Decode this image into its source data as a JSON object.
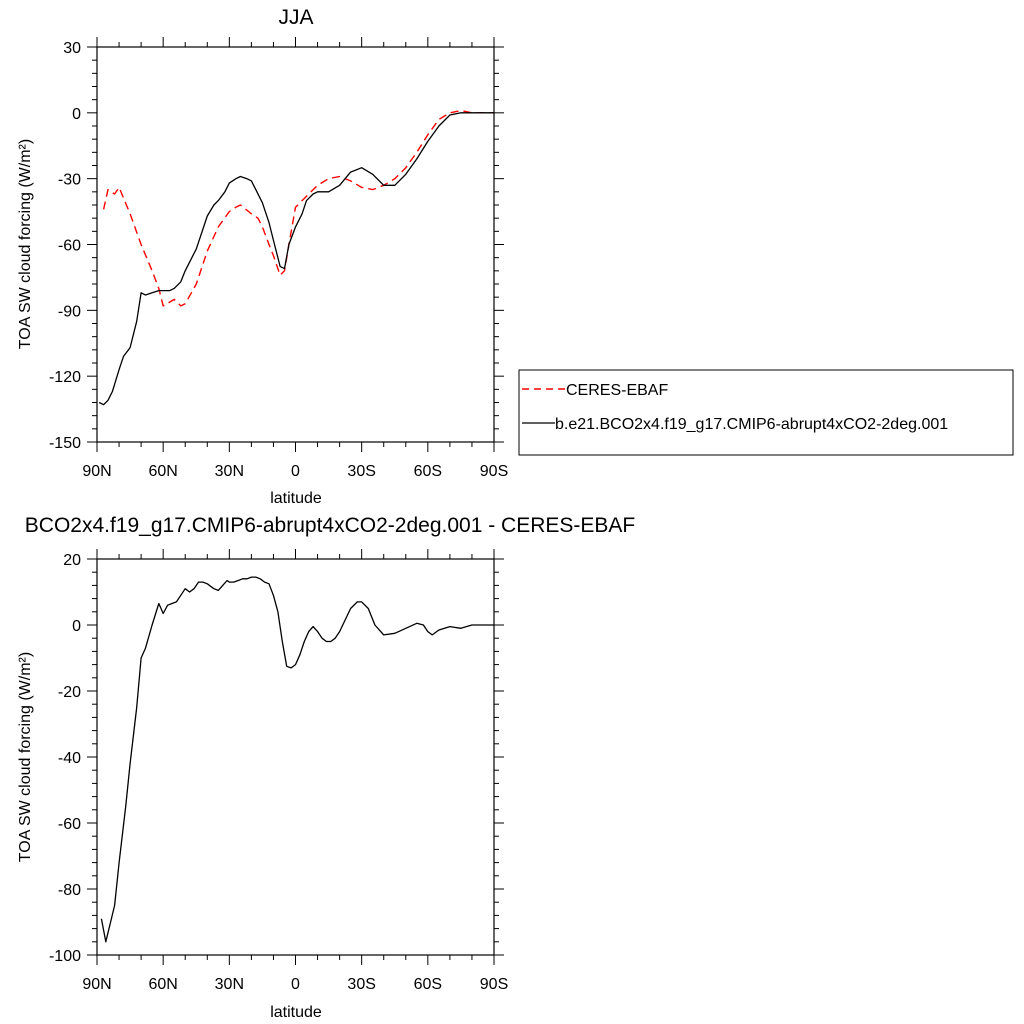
{
  "chart_data": [
    {
      "type": "line",
      "title": "JJA",
      "xlabel": "latitude",
      "ylabel": "TOA SW cloud forcing (W/m²)",
      "ylim": [
        -150,
        30
      ],
      "xlim": [
        90,
        -90
      ],
      "x_ticks": [
        "90N",
        "60N",
        "30N",
        "0",
        "30S",
        "60S",
        "90S"
      ],
      "y_ticks": [
        "30",
        "0",
        "-30",
        "-60",
        "-90",
        "-120",
        "-150"
      ],
      "legend_placement": "right",
      "series": [
        {
          "name": "CERES-EBAF",
          "color": "#ff0000",
          "dash": "dashed",
          "x": [
            87,
            85,
            82,
            80,
            75,
            70,
            65,
            62,
            60,
            55,
            52,
            50,
            45,
            40,
            35,
            30,
            27,
            25,
            20,
            17,
            15,
            12,
            10,
            7,
            5,
            3,
            0,
            -3,
            -5,
            -10,
            -15,
            -20,
            -25,
            -30,
            -35,
            -40,
            -45,
            -50,
            -55,
            -60,
            -65,
            -70,
            -75,
            -80,
            -85,
            -90
          ],
          "y": [
            -44,
            -35,
            -37,
            -34,
            -46,
            -60,
            -72,
            -80,
            -88,
            -85,
            -88,
            -87,
            -78,
            -63,
            -52,
            -45,
            -43,
            -42,
            -46,
            -48,
            -52,
            -60,
            -65,
            -74,
            -72,
            -60,
            -43,
            -40,
            -38,
            -33,
            -30,
            -29,
            -31,
            -34,
            -35,
            -33,
            -30,
            -25,
            -18,
            -10,
            -3,
            0,
            1,
            0,
            0,
            0
          ]
        },
        {
          "name": "b.e21.BCO2x4.f19_g17.CMIP6-abrupt4xCO2-2deg.001",
          "color": "#000000",
          "dash": "solid",
          "x": [
            89,
            87,
            85,
            83,
            80,
            78,
            75,
            72,
            70,
            68,
            65,
            62,
            60,
            57,
            55,
            52,
            50,
            45,
            40,
            37,
            35,
            32,
            30,
            27,
            25,
            22,
            20,
            18,
            15,
            12,
            10,
            7,
            5,
            3,
            0,
            -3,
            -5,
            -8,
            -10,
            -15,
            -20,
            -25,
            -30,
            -35,
            -40,
            -45,
            -50,
            -55,
            -60,
            -65,
            -70,
            -75,
            -80,
            -85,
            -90
          ],
          "y": [
            -132,
            -133,
            -131,
            -127,
            -117,
            -111,
            -107,
            -95,
            -82,
            -83,
            -82,
            -81,
            -81,
            -81,
            -80,
            -77,
            -72,
            -62,
            -47,
            -42,
            -40,
            -36,
            -32,
            -30,
            -29,
            -30,
            -31,
            -35,
            -41,
            -50,
            -58,
            -70,
            -71,
            -60,
            -52,
            -46,
            -40,
            -37,
            -36,
            -36,
            -33,
            -27,
            -25,
            -28,
            -33,
            -33,
            -28,
            -21,
            -13,
            -6,
            -1,
            0,
            0,
            0,
            0
          ]
        }
      ]
    },
    {
      "type": "line",
      "title": "BCO2x4.f19_g17.CMIP6-abrupt4xCO2-2deg.001 - CERES-EBAF",
      "xlabel": "latitude",
      "ylabel": "TOA SW cloud forcing (W/m²)",
      "ylim": [
        -100,
        20
      ],
      "xlim": [
        90,
        -90
      ],
      "x_ticks": [
        "90N",
        "60N",
        "30N",
        "0",
        "30S",
        "60S",
        "90S"
      ],
      "y_ticks": [
        "20",
        "0",
        "-20",
        "-40",
        "-60",
        "-80",
        "-100"
      ],
      "series": [
        {
          "color": "#000000",
          "dash": "solid",
          "x": [
            88,
            86,
            82,
            80,
            77,
            75,
            72,
            70,
            68,
            65,
            62,
            60,
            58,
            56,
            54,
            52,
            50,
            48,
            46,
            44,
            42,
            40,
            37,
            35,
            33,
            31,
            30,
            28,
            26,
            24,
            22,
            20,
            18,
            16,
            14,
            12,
            10,
            8,
            6,
            4,
            2,
            0,
            -2,
            -4,
            -6,
            -8,
            -10,
            -12,
            -14,
            -16,
            -18,
            -20,
            -25,
            -28,
            -30,
            -33,
            -36,
            -40,
            -45,
            -50,
            -55,
            -58,
            -60,
            -62,
            -65,
            -70,
            -75,
            -80,
            -85,
            -90
          ],
          "y": [
            -89,
            -96,
            -85,
            -72,
            -55,
            -42,
            -25,
            -10,
            -7,
            0,
            6.5,
            3.5,
            6,
            6.5,
            7,
            9,
            11,
            10,
            11,
            13,
            13,
            12.5,
            11,
            10.5,
            12,
            13.5,
            13,
            13,
            13.5,
            14,
            14,
            14.5,
            14.5,
            14,
            13,
            12.5,
            9,
            4,
            -5,
            -12.5,
            -13,
            -12,
            -9,
            -5,
            -2,
            -0.5,
            -2,
            -4,
            -5,
            -5,
            -4,
            -2,
            5,
            7,
            7,
            5,
            0,
            -3,
            -2.5,
            -1,
            0.5,
            0,
            -2,
            -3,
            -1.5,
            -0.5,
            -1,
            0,
            0,
            0
          ]
        }
      ]
    }
  ]
}
